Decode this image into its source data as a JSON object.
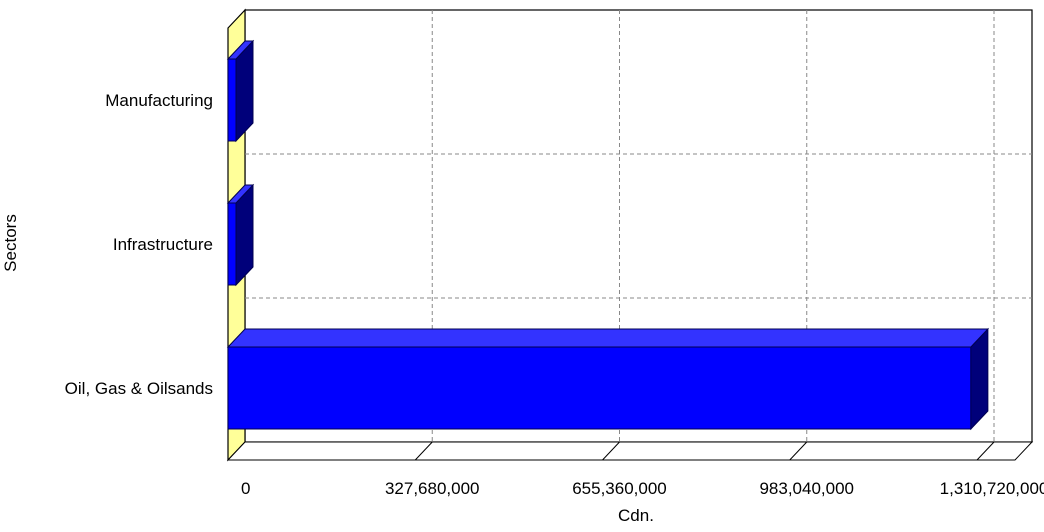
{
  "chart_data": {
    "type": "bar",
    "orientation": "horizontal",
    "style": "3d",
    "categories": [
      "Manufacturing",
      "Infrastructure",
      "Oil, Gas & Oilsands"
    ],
    "values": [
      30000,
      45000,
      1300000000
    ],
    "xlabel": "Cdn.",
    "ylabel": "Sectors",
    "xlim": [
      0,
      1310720000
    ],
    "xticks": [
      0,
      327680000,
      655360000,
      983040000,
      1310720000
    ],
    "xtick_labels": [
      "0",
      "327,680,000",
      "655,360,000",
      "983,040,000",
      "1,310,720,000"
    ],
    "grid": true,
    "colors": {
      "bar_face": "#0000ff",
      "bar_side": "#00007a",
      "bar_edge": "#000050",
      "wall": "#ffff99",
      "grid": "#888888"
    }
  }
}
